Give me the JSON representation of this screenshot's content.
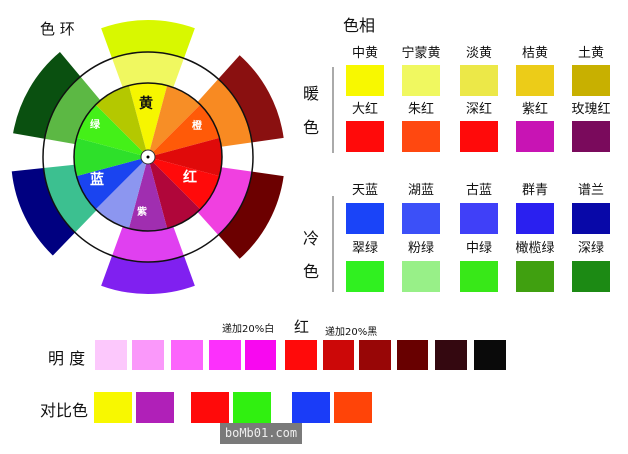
{
  "wheel": {
    "title": "色 环",
    "labels": {
      "yellow": "黄",
      "orange": "橙",
      "red": "红",
      "purple": "紫",
      "blue": "蓝",
      "green": "绿"
    },
    "inner_colors": [
      "#f6f600",
      "#f78e26",
      "#ff5a08",
      "#e00a0a",
      "#ff0a0a",
      "#b0063a",
      "#a02eb0",
      "#8c96f0",
      "#1a44f0",
      "#2ee02a",
      "#44f018",
      "#b4c800"
    ],
    "mid_colors": [
      "#f0f860",
      "#f88a22",
      "#f040e0",
      "#e040f0",
      "#3cc090",
      "#5cb844"
    ],
    "outer_colors": [
      "#d8f800",
      "#8a1010",
      "#6c0000",
      "#8020f0",
      "#000080",
      "#0a5010"
    ]
  },
  "hue": {
    "title": "色相",
    "warm": {
      "label1": "暖",
      "label2": "色",
      "rows": [
        [
          {
            "name": "中黄",
            "color": "#f8f800"
          },
          {
            "name": "宁蒙黄",
            "color": "#f0f860"
          },
          {
            "name": "淡黄",
            "color": "#ece848"
          },
          {
            "name": "桔黄",
            "color": "#eccc18"
          },
          {
            "name": "土黄",
            "color": "#c8b000"
          }
        ],
        [
          {
            "name": "大红",
            "color": "#ff0a0a"
          },
          {
            "name": "朱红",
            "color": "#ff4810"
          },
          {
            "name": "深红",
            "color": "#ff0a0a"
          },
          {
            "name": "紫红",
            "color": "#c814b4"
          },
          {
            "name": "玫瑰红",
            "color": "#7a0a5c"
          }
        ]
      ]
    },
    "cool": {
      "label1": "冷",
      "label2": "色",
      "rows": [
        [
          {
            "name": "天蓝",
            "color": "#1a44f8"
          },
          {
            "name": "湖蓝",
            "color": "#3c50f8"
          },
          {
            "name": "古蓝",
            "color": "#4040f8"
          },
          {
            "name": "群青",
            "color": "#2a20f0"
          },
          {
            "name": "谱兰",
            "color": "#0808a8"
          }
        ],
        [
          {
            "name": "翠绿",
            "color": "#30f020"
          },
          {
            "name": "粉绿",
            "color": "#98f088"
          },
          {
            "name": "中绿",
            "color": "#38e818"
          },
          {
            "name": "橄榄绿",
            "color": "#40a010"
          },
          {
            "name": "深绿",
            "color": "#1c8a14"
          }
        ]
      ]
    }
  },
  "brightness": {
    "label": "明 度",
    "white_note": "递加20%白",
    "center": "红",
    "black_note": "递加20%黑",
    "colors": [
      "#fcc8fc",
      "#fa98fa",
      "#fc64fc",
      "#fc30fc",
      "#f808f0",
      "#ff0a0a",
      "#cc0808",
      "#980606",
      "#680000",
      "#340810",
      "#0a0a0a"
    ]
  },
  "contrast": {
    "label": "对比色",
    "colors": [
      "#f8f800",
      "#b020b8",
      "#ff0a0a",
      "#30f010",
      "#1a3cf8",
      "#ff4408"
    ]
  },
  "watermark": "boMb01.com"
}
